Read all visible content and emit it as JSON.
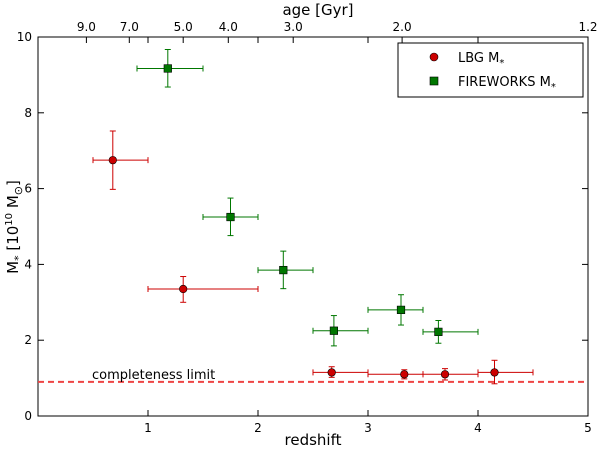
{
  "chart_data": {
    "type": "scatter",
    "xlabel": "redshift",
    "ylabel": "M_* [10^10 M_⊙]",
    "xlim": [
      0,
      5
    ],
    "ylim": [
      0,
      10
    ],
    "x_ticks": [
      1,
      2,
      3,
      4,
      5
    ],
    "y_ticks": [
      0,
      2,
      4,
      6,
      8,
      10
    ],
    "top_axis": {
      "title": "age [Gyr]",
      "ticks": [
        {
          "label": "9.0",
          "z": 0.44
        },
        {
          "label": "7.0",
          "z": 0.83
        },
        {
          "label": "5.0",
          "z": 1.32
        },
        {
          "label": "4.0",
          "z": 1.73
        },
        {
          "label": "3.0",
          "z": 2.32
        },
        {
          "label": "2.0",
          "z": 3.31
        },
        {
          "label": "1.2",
          "z": 5.0
        }
      ]
    },
    "series": [
      {
        "name": "LBG M*",
        "marker": "circle",
        "color": "#cc0000",
        "points": [
          {
            "x": 0.68,
            "y": 6.75,
            "xerr": [
              0.5,
              1.0
            ],
            "yerr": [
              5.98,
              7.52
            ]
          },
          {
            "x": 1.32,
            "y": 3.35,
            "xerr": [
              1.0,
              2.0
            ],
            "yerr": [
              3.0,
              3.68
            ]
          },
          {
            "x": 2.67,
            "y": 1.15,
            "xerr": [
              2.5,
              3.0
            ],
            "yerr": [
              1.02,
              1.3
            ]
          },
          {
            "x": 3.33,
            "y": 1.1,
            "xerr": [
              3.0,
              3.5
            ],
            "yerr": [
              0.98,
              1.22
            ]
          },
          {
            "x": 3.7,
            "y": 1.1,
            "xerr": [
              3.5,
              4.0
            ],
            "yerr": [
              0.95,
              1.25
            ]
          },
          {
            "x": 4.15,
            "y": 1.15,
            "xerr": [
              4.0,
              4.5
            ],
            "yerr": [
              0.85,
              1.47
            ]
          }
        ]
      },
      {
        "name": "FIREWORKS M*",
        "marker": "square",
        "color": "#007700",
        "points": [
          {
            "x": 1.18,
            "y": 9.17,
            "xerr": [
              0.9,
              1.5
            ],
            "yerr": [
              8.68,
              9.67
            ]
          },
          {
            "x": 1.75,
            "y": 5.25,
            "xerr": [
              1.5,
              2.0
            ],
            "yerr": [
              4.76,
              5.75
            ]
          },
          {
            "x": 2.23,
            "y": 3.85,
            "xerr": [
              2.0,
              2.5
            ],
            "yerr": [
              3.36,
              4.35
            ]
          },
          {
            "x": 2.69,
            "y": 2.25,
            "xerr": [
              2.5,
              3.0
            ],
            "yerr": [
              1.85,
              2.65
            ]
          },
          {
            "x": 3.3,
            "y": 2.8,
            "xerr": [
              3.0,
              3.5
            ],
            "yerr": [
              2.4,
              3.2
            ]
          },
          {
            "x": 3.64,
            "y": 2.22,
            "xerr": [
              3.5,
              4.0
            ],
            "yerr": [
              1.92,
              2.52
            ]
          }
        ]
      }
    ],
    "reference_line": {
      "y": 0.9,
      "label": "completeness limit",
      "color": "#ee4444",
      "style": "dashed"
    },
    "legend": {
      "position": "top-right",
      "entries": [
        "LBG M*",
        "FIREWORKS M*"
      ]
    }
  }
}
